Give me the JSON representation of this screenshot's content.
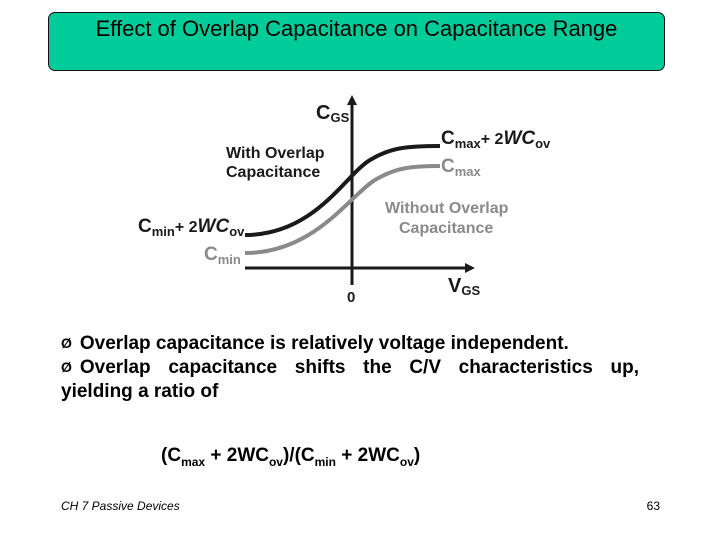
{
  "title": "Effect of Overlap Capacitance on Capacitance Range",
  "diagram": {
    "y_axis": {
      "main": "C",
      "sub": "GS"
    },
    "x_axis": {
      "main": "V",
      "sub": "GS"
    },
    "origin": "0",
    "label_with_line1": "With Overlap",
    "label_with_line2": "Capacitance",
    "label_without_line1": "Without Overlap",
    "label_without_line2": "Capacitance",
    "cmax_plus": {
      "c": "C",
      "sub": "max",
      "rest": "+ 2",
      "w": "WC",
      "wsub": "ov"
    },
    "cmax": {
      "c": "C",
      "sub": "max"
    },
    "cmin_plus": {
      "c": "C",
      "sub": "min",
      "rest": "+ 2",
      "w": "WC",
      "wsub": "ov"
    },
    "cmin": {
      "c": "C",
      "sub": "min"
    },
    "colors": {
      "with_curve": "#1a1a1a",
      "without_curve": "#8a8a8a"
    }
  },
  "bullets": {
    "arrow": "Ø",
    "b1": "Overlap capacitance is relatively voltage independent.",
    "b2_line1": "Overlap capacitance shifts the C/V characteristics up,",
    "b2_line2": "yielding a ratio of"
  },
  "formula": {
    "p1": "(C",
    "s1": "max",
    "p2": " + 2WC",
    "s2": "ov",
    "p3": ")/(C",
    "s3": "min",
    "p4": " + 2WC",
    "s4": "ov",
    "p5": ")"
  },
  "footer": {
    "left": "CH 7 Passive Devices",
    "page": "63"
  },
  "colors": {
    "title_bg": "#00cc99"
  }
}
